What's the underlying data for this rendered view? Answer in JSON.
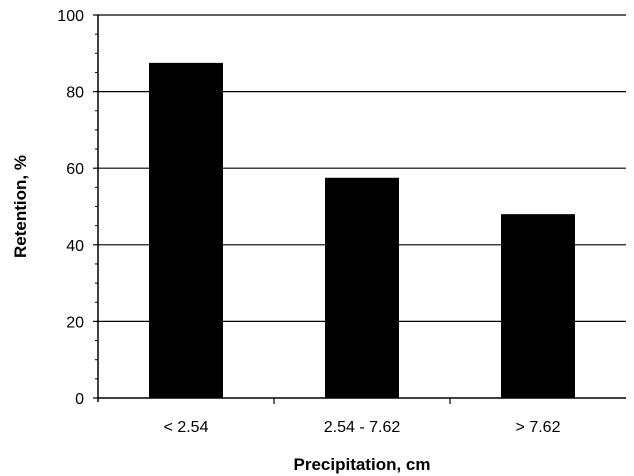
{
  "chart_data": {
    "type": "bar",
    "title": "",
    "xlabel": "Precipitation, cm",
    "ylabel": "Retention, %",
    "categories": [
      "< 2.54",
      "2.54 - 7.62",
      "> 7.62"
    ],
    "values": [
      87.5,
      57.5,
      48
    ],
    "ylim": [
      0,
      100
    ],
    "yticks": [
      0,
      20,
      40,
      60,
      80,
      100
    ],
    "grid": "horizontal",
    "legend": "none",
    "bar_color": "#000000",
    "gridline_color": "#000000"
  }
}
